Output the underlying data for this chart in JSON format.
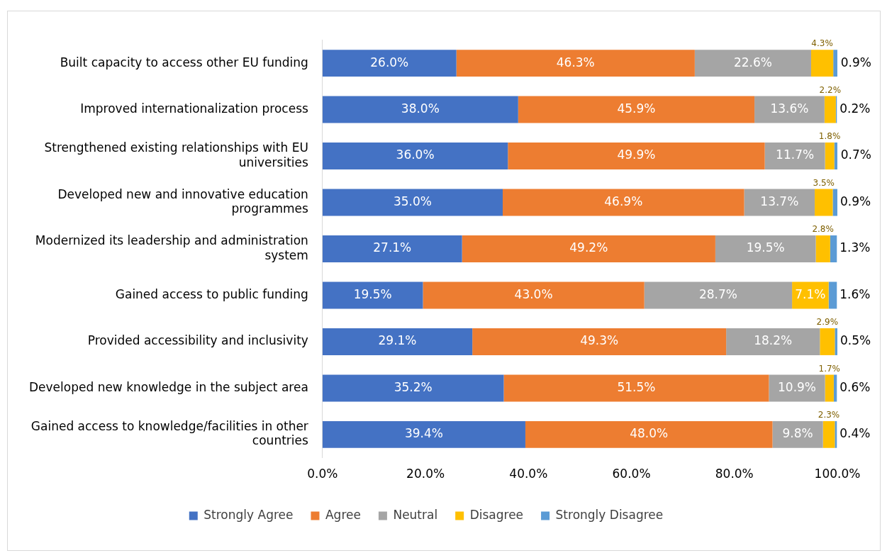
{
  "chart_data": {
    "type": "bar",
    "orientation": "horizontal",
    "stacked": true,
    "grid": false,
    "legend": "bottom",
    "categories": [
      "Built capacity to access other EU funding",
      "Improved internationalization process",
      "Strengthened existing relationships with EU universities",
      "Developed new and innovative education programmes",
      "Modernized its leadership and administration system",
      "Gained access to public funding",
      "Provided accessibility and inclusivity",
      "Developed new knowledge in the subject area",
      "Gained access to knowledge/facilities in other countries"
    ],
    "xlim": [
      0,
      100
    ],
    "xticks": [
      {
        "value": 0,
        "label": "0.0%"
      },
      {
        "value": 20,
        "label": "20.0%"
      },
      {
        "value": 40,
        "label": "40.0%"
      },
      {
        "value": 60,
        "label": "60.0%"
      },
      {
        "value": 80,
        "label": "80.0%"
      },
      {
        "value": 100,
        "label": "100.0%"
      }
    ],
    "series": [
      {
        "name": "Strongly Agree",
        "color": "#4472c4",
        "values": [
          26.0,
          38.0,
          36.0,
          35.0,
          27.1,
          19.5,
          29.1,
          35.2,
          39.4
        ],
        "value_labels": [
          "26.0%",
          "38.0%",
          "36.0%",
          "35.0%",
          "27.1%",
          "19.5%",
          "29.1%",
          "35.2%",
          "39.4%"
        ]
      },
      {
        "name": "Agree",
        "color": "#ed7d31",
        "values": [
          46.3,
          45.9,
          49.9,
          46.9,
          49.2,
          43.0,
          49.3,
          51.5,
          48.0
        ],
        "value_labels": [
          "46.3%",
          "45.9%",
          "49.9%",
          "46.9%",
          "49.2%",
          "43.0%",
          "49.3%",
          "51.5%",
          "48.0%"
        ]
      },
      {
        "name": "Neutral",
        "color": "#a5a5a5",
        "values": [
          22.6,
          13.6,
          11.7,
          13.7,
          19.5,
          28.7,
          18.2,
          10.9,
          9.8
        ],
        "value_labels": [
          "22.6%",
          "13.6%",
          "11.7%",
          "13.7%",
          "19.5%",
          "28.7%",
          "18.2%",
          "10.9%",
          "9.8%"
        ]
      },
      {
        "name": "Disagree",
        "color": "#ffc000",
        "values": [
          4.3,
          2.2,
          1.8,
          3.5,
          2.8,
          7.1,
          2.9,
          1.7,
          2.3
        ],
        "value_labels": [
          "4.3%",
          "2.2%",
          "1.8%",
          "3.5%",
          "2.8%",
          "7.1%",
          "2.9%",
          "1.7%",
          "2.3%"
        ]
      },
      {
        "name": "Strongly Disagree",
        "color": "#5b9bd5",
        "values": [
          0.9,
          0.2,
          0.7,
          0.9,
          1.3,
          1.6,
          0.5,
          0.6,
          0.4
        ],
        "value_labels": [
          "0.9%",
          "0.2%",
          "0.7%",
          "0.9%",
          "1.3%",
          "1.6%",
          "0.5%",
          "0.6%",
          "0.4%"
        ]
      }
    ]
  }
}
